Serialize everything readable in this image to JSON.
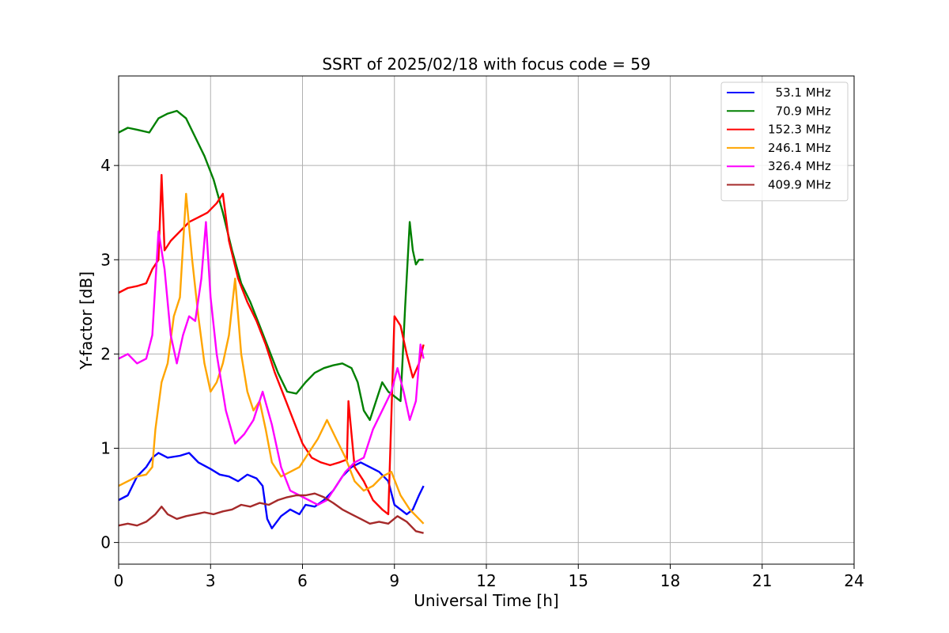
{
  "chart_data": {
    "type": "line",
    "title": "SSRT of 2025/02/18 with focus code = 59",
    "xlabel": "Universal Time [h]",
    "ylabel": "Y-factor [dB]",
    "xlim": [
      0,
      24
    ],
    "ylim": [
      -0.23,
      4.95
    ],
    "xticks": [
      0,
      3,
      6,
      9,
      12,
      15,
      18,
      21,
      24
    ],
    "yticks": [
      0,
      1,
      2,
      3,
      4
    ],
    "grid": true,
    "legend_position": "top-right",
    "series": [
      {
        "name": "53.1 MHz",
        "label": "  53.1 MHz",
        "color": "#0000ff",
        "x": [
          0,
          0.3,
          0.6,
          0.9,
          1.1,
          1.3,
          1.6,
          2.0,
          2.3,
          2.6,
          3.0,
          3.3,
          3.6,
          3.9,
          4.2,
          4.5,
          4.7,
          4.85,
          5.0,
          5.3,
          5.6,
          5.9,
          6.1,
          6.4,
          6.7,
          7.0,
          7.3,
          7.6,
          7.9,
          8.2,
          8.5,
          8.8,
          9.0,
          9.2,
          9.4,
          9.6,
          9.8,
          9.95
        ],
        "y": [
          0.45,
          0.5,
          0.7,
          0.8,
          0.9,
          0.95,
          0.9,
          0.92,
          0.95,
          0.85,
          0.78,
          0.72,
          0.7,
          0.65,
          0.72,
          0.68,
          0.6,
          0.25,
          0.15,
          0.28,
          0.35,
          0.3,
          0.4,
          0.38,
          0.45,
          0.55,
          0.7,
          0.8,
          0.85,
          0.8,
          0.75,
          0.65,
          0.4,
          0.35,
          0.3,
          0.35,
          0.5,
          0.6
        ]
      },
      {
        "name": "70.9 MHz",
        "label": "  70.9 MHz",
        "color": "#008000",
        "x": [
          0,
          0.3,
          0.6,
          1.0,
          1.3,
          1.6,
          1.9,
          2.2,
          2.5,
          2.8,
          3.1,
          3.4,
          3.7,
          4.0,
          4.3,
          4.6,
          4.9,
          5.2,
          5.5,
          5.8,
          6.1,
          6.4,
          6.7,
          7.0,
          7.3,
          7.6,
          7.8,
          8.0,
          8.2,
          8.4,
          8.6,
          8.8,
          9.0,
          9.2,
          9.35,
          9.5,
          9.6,
          9.7,
          9.8,
          9.95
        ],
        "y": [
          4.35,
          4.4,
          4.38,
          4.35,
          4.5,
          4.55,
          4.58,
          4.5,
          4.3,
          4.1,
          3.85,
          3.5,
          3.1,
          2.75,
          2.55,
          2.3,
          2.05,
          1.8,
          1.6,
          1.58,
          1.7,
          1.8,
          1.85,
          1.88,
          1.9,
          1.85,
          1.7,
          1.4,
          1.3,
          1.5,
          1.7,
          1.6,
          1.55,
          1.5,
          2.5,
          3.4,
          3.1,
          2.95,
          3.0,
          3.0
        ]
      },
      {
        "name": "152.3 MHz",
        "label": "152.3 MHz",
        "color": "#ff0000",
        "x": [
          0,
          0.3,
          0.6,
          0.9,
          1.1,
          1.3,
          1.4,
          1.5,
          1.7,
          2.0,
          2.3,
          2.6,
          2.9,
          3.2,
          3.4,
          3.6,
          3.9,
          4.2,
          4.5,
          4.8,
          5.1,
          5.4,
          5.7,
          6.0,
          6.3,
          6.6,
          6.9,
          7.2,
          7.45,
          7.5,
          7.7,
          8.0,
          8.3,
          8.6,
          8.8,
          9.0,
          9.2,
          9.4,
          9.6,
          9.8,
          9.95
        ],
        "y": [
          2.65,
          2.7,
          2.72,
          2.75,
          2.9,
          3.0,
          3.9,
          3.1,
          3.2,
          3.3,
          3.4,
          3.45,
          3.5,
          3.6,
          3.7,
          3.2,
          2.8,
          2.55,
          2.35,
          2.1,
          1.8,
          1.55,
          1.3,
          1.05,
          0.9,
          0.85,
          0.82,
          0.85,
          0.88,
          1.5,
          0.8,
          0.65,
          0.45,
          0.35,
          0.3,
          2.4,
          2.3,
          2.0,
          1.75,
          1.9,
          2.1
        ]
      },
      {
        "name": "246.1 MHz",
        "label": "246.1 MHz",
        "color": "#ffa500",
        "x": [
          0,
          0.3,
          0.6,
          0.9,
          1.1,
          1.2,
          1.4,
          1.6,
          1.8,
          2.0,
          2.2,
          2.4,
          2.6,
          2.8,
          3.0,
          3.2,
          3.4,
          3.6,
          3.8,
          4.0,
          4.2,
          4.4,
          4.6,
          4.8,
          5.0,
          5.3,
          5.6,
          5.9,
          6.2,
          6.5,
          6.8,
          7.1,
          7.4,
          7.7,
          8.0,
          8.3,
          8.6,
          8.9,
          9.2,
          9.5,
          9.8,
          9.95
        ],
        "y": [
          0.6,
          0.65,
          0.7,
          0.72,
          0.8,
          1.2,
          1.7,
          1.9,
          2.4,
          2.6,
          3.7,
          3.0,
          2.4,
          1.9,
          1.6,
          1.7,
          1.9,
          2.2,
          2.8,
          2.0,
          1.6,
          1.4,
          1.5,
          1.2,
          0.85,
          0.7,
          0.75,
          0.8,
          0.95,
          1.1,
          1.3,
          1.1,
          0.9,
          0.65,
          0.55,
          0.6,
          0.7,
          0.75,
          0.5,
          0.35,
          0.25,
          0.2
        ]
      },
      {
        "name": "326.4 MHz",
        "label": "326.4 MHz",
        "color": "#ff00ff",
        "x": [
          0,
          0.3,
          0.6,
          0.9,
          1.1,
          1.3,
          1.5,
          1.7,
          1.9,
          2.1,
          2.3,
          2.5,
          2.7,
          2.85,
          3.0,
          3.2,
          3.5,
          3.8,
          4.1,
          4.4,
          4.7,
          5.0,
          5.3,
          5.6,
          5.9,
          6.2,
          6.5,
          6.8,
          7.1,
          7.4,
          7.7,
          8.0,
          8.3,
          8.6,
          8.9,
          9.1,
          9.3,
          9.5,
          9.7,
          9.85,
          9.95
        ],
        "y": [
          1.95,
          2.0,
          1.9,
          1.95,
          2.2,
          3.3,
          2.9,
          2.2,
          1.9,
          2.2,
          2.4,
          2.35,
          2.8,
          3.4,
          2.6,
          2.0,
          1.4,
          1.05,
          1.15,
          1.3,
          1.6,
          1.25,
          0.8,
          0.55,
          0.5,
          0.45,
          0.4,
          0.45,
          0.6,
          0.75,
          0.85,
          0.9,
          1.2,
          1.4,
          1.6,
          1.85,
          1.6,
          1.3,
          1.5,
          2.1,
          1.95
        ]
      },
      {
        "name": "409.9 MHz",
        "label": "409.9 MHz",
        "color": "#a52a2a",
        "x": [
          0,
          0.3,
          0.6,
          0.9,
          1.2,
          1.4,
          1.6,
          1.9,
          2.2,
          2.5,
          2.8,
          3.1,
          3.4,
          3.7,
          4.0,
          4.3,
          4.6,
          4.9,
          5.2,
          5.5,
          5.8,
          6.1,
          6.4,
          6.7,
          7.0,
          7.3,
          7.6,
          7.9,
          8.2,
          8.5,
          8.8,
          9.1,
          9.4,
          9.7,
          9.95
        ],
        "y": [
          0.18,
          0.2,
          0.18,
          0.22,
          0.3,
          0.38,
          0.3,
          0.25,
          0.28,
          0.3,
          0.32,
          0.3,
          0.33,
          0.35,
          0.4,
          0.38,
          0.42,
          0.4,
          0.45,
          0.48,
          0.5,
          0.5,
          0.52,
          0.48,
          0.42,
          0.35,
          0.3,
          0.25,
          0.2,
          0.22,
          0.2,
          0.28,
          0.22,
          0.12,
          0.1
        ]
      }
    ]
  }
}
